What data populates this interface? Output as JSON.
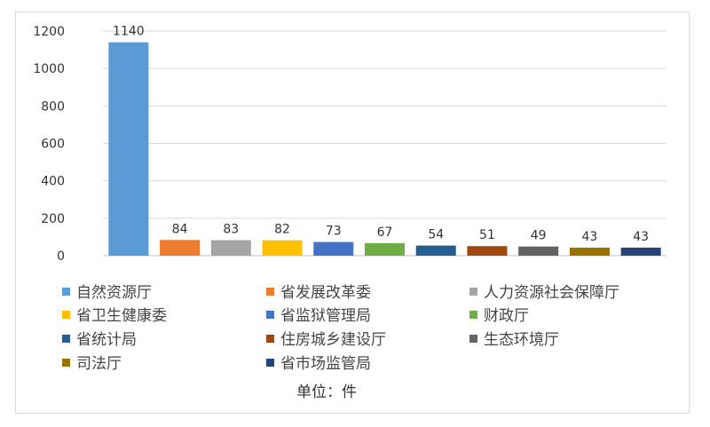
{
  "chart_data": {
    "type": "bar",
    "categories": [
      "自然资源厅",
      "省发展改革委",
      "人力资源社会保障厅",
      "省卫生健康委",
      "省监狱管理局",
      "财政厅",
      "省统计局",
      "住房城乡建设厅",
      "生态环境厅",
      "司法厅",
      "省市场监管局"
    ],
    "values": [
      1140,
      84,
      83,
      82,
      73,
      67,
      54,
      51,
      49,
      43,
      43
    ],
    "colors": [
      "#5b9bd5",
      "#ed7d31",
      "#a5a5a5",
      "#ffc000",
      "#4472c4",
      "#70ad47",
      "#255e91",
      "#9e480e",
      "#636363",
      "#997300",
      "#264478"
    ],
    "yticks": [
      0,
      200,
      400,
      600,
      800,
      1000,
      1200
    ],
    "ylim": [
      0,
      1200
    ],
    "grid": true,
    "legend_position": "bottom",
    "unit_label": "单位：件"
  }
}
